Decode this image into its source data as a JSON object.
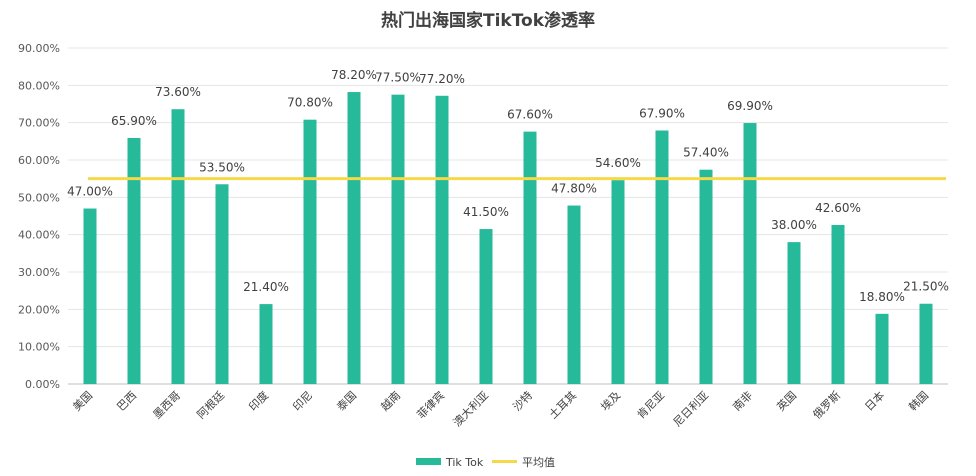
{
  "chart_data": {
    "type": "bar",
    "title": "热门出海国家TikTok渗透率",
    "categories": [
      "美国",
      "巴西",
      "墨西哥",
      "阿根廷",
      "印度",
      "印尼",
      "泰国",
      "越南",
      "菲律宾",
      "澳大利亚",
      "沙特",
      "土耳其",
      "埃及",
      "肯尼亚",
      "尼日利亚",
      "南非",
      "英国",
      "俄罗斯",
      "日本",
      "韩国"
    ],
    "series": [
      {
        "name": "Tik Tok",
        "color": "#26b99a",
        "values": [
          47.0,
          65.9,
          73.6,
          53.5,
          21.4,
          70.8,
          78.2,
          77.5,
          77.2,
          41.5,
          67.6,
          47.8,
          54.6,
          67.9,
          57.4,
          69.9,
          38.0,
          42.6,
          18.8,
          21.5
        ],
        "labels": [
          "47.00%",
          "65.90%",
          "73.60%",
          "53.50%",
          "21.40%",
          "70.80%",
          "78.20%",
          "77.50%",
          "77.20%",
          "41.50%",
          "67.60%",
          "47.80%",
          "54.60%",
          "67.90%",
          "57.40%",
          "69.90%",
          "38.00%",
          "42.60%",
          "18.80%",
          "21.50%"
        ]
      }
    ],
    "average": {
      "name": "平均值",
      "value": 55.0,
      "color": "#f5d94a"
    },
    "ylim": [
      0,
      90
    ],
    "yticks": [
      "0.00%",
      "10.00%",
      "20.00%",
      "30.00%",
      "40.00%",
      "50.00%",
      "60.00%",
      "70.00%",
      "80.00%",
      "90.00%"
    ],
    "grid": true,
    "legend_position": "bottom"
  }
}
